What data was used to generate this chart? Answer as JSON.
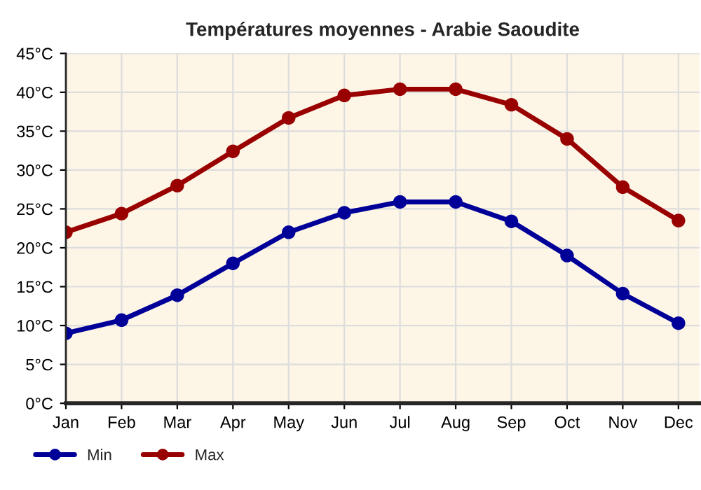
{
  "chart_data": {
    "type": "line",
    "title": "Températures moyennes - Arabie Saoudite",
    "categories": [
      "Jan",
      "Feb",
      "Mar",
      "Apr",
      "May",
      "Jun",
      "Jul",
      "Aug",
      "Sep",
      "Oct",
      "Nov",
      "Dec"
    ],
    "series": [
      {
        "name": "Min",
        "color": "#000099",
        "values": [
          9,
          10.7,
          13.9,
          18,
          22,
          24.5,
          25.9,
          25.9,
          23.4,
          19,
          14.1,
          10.3
        ]
      },
      {
        "name": "Max",
        "color": "#990000",
        "values": [
          22,
          24.4,
          28,
          32.4,
          36.7,
          39.6,
          40.4,
          40.4,
          38.4,
          34,
          27.8,
          23.5
        ]
      }
    ],
    "ylim": [
      0,
      45
    ],
    "yticks": [
      {
        "value": 0,
        "label": "0°C"
      },
      {
        "value": 5,
        "label": "5°C"
      },
      {
        "value": 10,
        "label": "10°C"
      },
      {
        "value": 15,
        "label": "15°C"
      },
      {
        "value": 20,
        "label": "20°C"
      },
      {
        "value": 25,
        "label": "25°C"
      },
      {
        "value": 30,
        "label": "30°C"
      },
      {
        "value": 35,
        "label": "35°C"
      },
      {
        "value": 40,
        "label": "40°C"
      },
      {
        "value": 45,
        "label": "45°C"
      }
    ],
    "grid": true,
    "legend": "bottom left",
    "marker": "circle",
    "line_style": "solid"
  }
}
